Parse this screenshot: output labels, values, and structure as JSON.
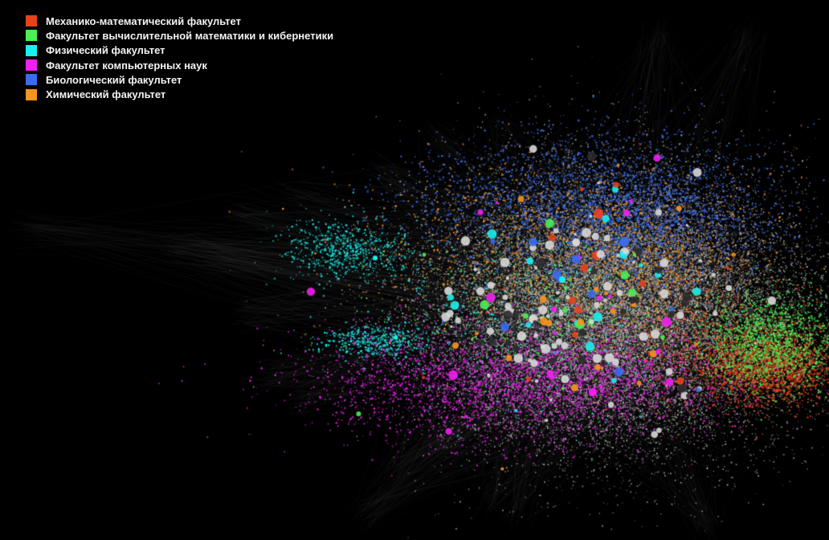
{
  "legend": {
    "items": [
      {
        "label": "Механико-математический факультет",
        "color": "#e8421c"
      },
      {
        "label": "Факультет вычислительной математики и кибернетики",
        "color": "#4dee55"
      },
      {
        "label": "Физический факультет",
        "color": "#19f0ee"
      },
      {
        "label": "Факультет компьютерных наук",
        "color": "#f21ff2"
      },
      {
        "label": "Биологический факультет",
        "color": "#3a6cf0"
      },
      {
        "label": "Химический факультет",
        "color": "#f7931e"
      }
    ]
  },
  "graph": {
    "background": "#000000",
    "neutral_node_color": "#d8d8d8",
    "hub_node_color": "#2b2b2b",
    "edge_color": "#8a8a8a"
  }
}
